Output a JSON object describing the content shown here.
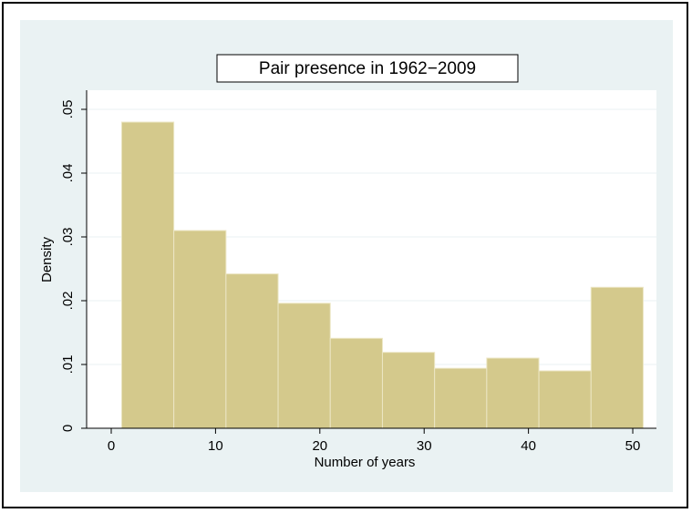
{
  "chart_data": {
    "type": "histogram",
    "title": "Pair presence in 1962−2009",
    "x_label": "Number of years",
    "y_label": "Density",
    "bins": [
      1,
      6,
      11,
      16,
      21,
      26,
      31,
      36,
      41,
      46,
      51
    ],
    "values": [
      0.048,
      0.031,
      0.0242,
      0.0196,
      0.0141,
      0.0119,
      0.0094,
      0.011,
      0.009,
      0.0221
    ],
    "color": "#d4c98c",
    "xlim": [
      -2.36,
      52.27
    ],
    "ylim": [
      0,
      0.053
    ],
    "xticks": [
      0,
      10,
      20,
      30,
      40,
      50
    ],
    "yticks": [
      0,
      {
        "value": 0.01,
        "label": ".01"
      },
      {
        "value": 0.02,
        "label": ".02"
      },
      {
        "value": 0.03,
        "label": ".03"
      },
      {
        "value": 0.04,
        "label": ".04"
      },
      {
        "value": 0.05,
        "label": ".05"
      }
    ],
    "grid": true
  }
}
